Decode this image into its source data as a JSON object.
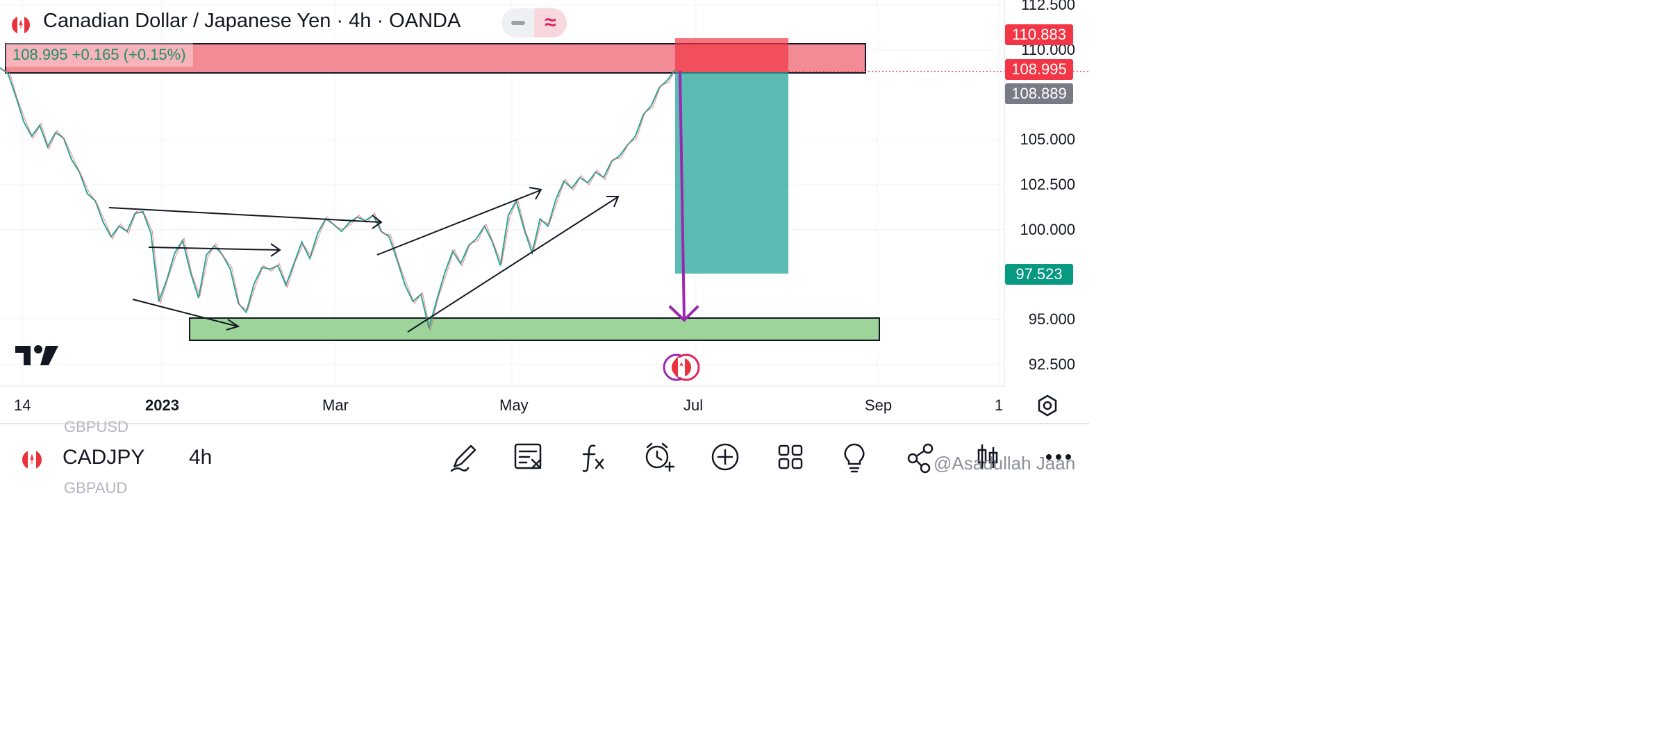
{
  "header": {
    "title": "Canadian Dollar / Japanese Yen · 4h · OANDA",
    "price_line": "108.995  +0.165 (+0.15%)"
  },
  "colors": {
    "up": "#26a69a",
    "down": "#ef5350",
    "resistance_zone": "#f28b96",
    "support_zone": "#8fd08a",
    "target_area": "#26a69a",
    "stop_area": "#f23645",
    "projection_arrow": "#9c27b0",
    "last_price_tag": "#f23645",
    "bid_tag": "#787b86",
    "target_tag": "#089981"
  },
  "chart_data": {
    "type": "line",
    "symbol": "CADJPY",
    "interval": "4h",
    "ylim": [
      91.6,
      112.7
    ],
    "y_ticks": [
      "112.500",
      "110.000",
      "105.000",
      "102.500",
      "100.000",
      "95.000",
      "92.500"
    ],
    "x_ticks": [
      "14",
      "2023",
      "Mar",
      "May",
      "Jul",
      "Sep",
      "1"
    ],
    "price_tags": [
      {
        "label": "110.883",
        "value": 110.883,
        "kind": "stop"
      },
      {
        "label": "108.995",
        "value": 108.995,
        "kind": "last"
      },
      {
        "label": "108.889",
        "value": 108.889,
        "kind": "bid"
      },
      {
        "label": "97.523",
        "value": 97.523,
        "kind": "target"
      }
    ],
    "series": [
      {
        "values": [
          109.0,
          108.7,
          107.4,
          106.0,
          105.2,
          105.8,
          104.6,
          105.4,
          105.1,
          103.9,
          103.2,
          102.0,
          101.6,
          100.4,
          99.6,
          100.2,
          99.9,
          100.9,
          101.0,
          99.8,
          96.0,
          97.2,
          98.7,
          99.4,
          97.6,
          96.2,
          98.6,
          99.1,
          98.6,
          97.8,
          95.9,
          95.4,
          97.0,
          97.9,
          97.8,
          98.0,
          96.9,
          98.1,
          99.3,
          98.4,
          99.8,
          100.6,
          100.3,
          99.9,
          100.4,
          100.7,
          100.5,
          100.8,
          99.9,
          99.6,
          98.3,
          96.9,
          96.0,
          96.4,
          94.5,
          96.1,
          97.6,
          98.8,
          98.1,
          99.1,
          99.5,
          100.2,
          99.3,
          98.0,
          100.8,
          101.6,
          100.0,
          98.7,
          100.6,
          100.2,
          101.7,
          102.7,
          102.3,
          102.9,
          102.6,
          103.2,
          102.9,
          103.8,
          104.1,
          104.7,
          105.2,
          106.4,
          106.9,
          107.9,
          108.3,
          108.9
        ]
      }
    ],
    "annotations": {
      "resistance_zone": [
        109.0,
        110.7
      ],
      "support_zone": [
        93.8,
        95.0
      ],
      "position": {
        "entry": 108.995,
        "stop": 110.883,
        "target": 97.523
      },
      "projection_arrow_to": 95.0
    }
  },
  "axis": {
    "settings_icon": "gear-icon"
  },
  "bottom_bar": {
    "prev_symbol": "GBPUSD",
    "symbol": "CADJPY",
    "interval": "4h",
    "next_symbol": "GBPAUD",
    "tools": [
      "drawing-pen-icon",
      "list-remove-icon",
      "function-icon",
      "alert-clock-icon",
      "plus-circle-icon",
      "grid-icon",
      "idea-bulb-icon",
      "share-icon",
      "candles-icon",
      "more-icon"
    ],
    "watermark": "@Asadullah Jaan"
  }
}
